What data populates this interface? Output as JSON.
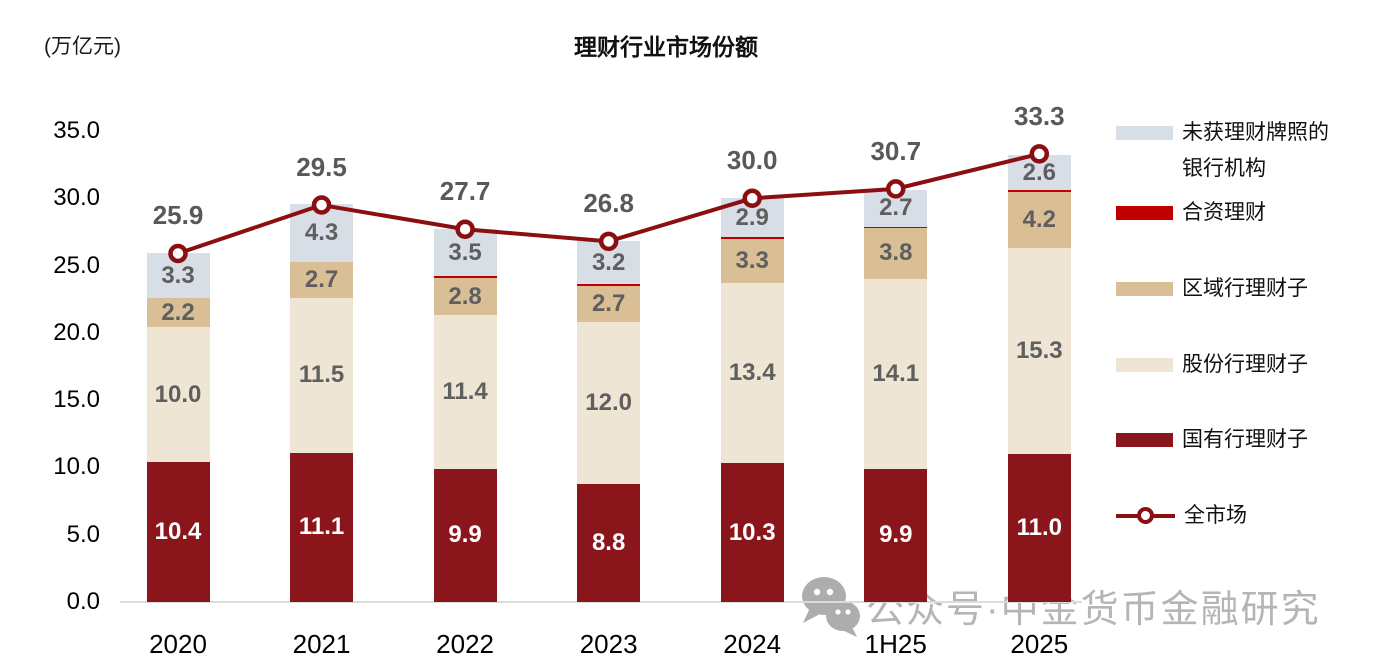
{
  "header": {
    "unit_label": "(万亿元)",
    "title": "理财行业市场份额"
  },
  "chart_data": {
    "type": "bar",
    "stacked": true,
    "title": "理财行业市场份额",
    "ylabel": "(万亿元)",
    "categories": [
      "2020",
      "2021",
      "2022",
      "2023",
      "2024",
      "1H25",
      "2025"
    ],
    "series": [
      {
        "name": "国有行理财子",
        "color": "#8a151b",
        "label_style": "white",
        "values": [
          10.4,
          11.1,
          9.9,
          8.8,
          10.3,
          9.9,
          11.0
        ]
      },
      {
        "name": "股份行理财子",
        "color": "#efe5d5",
        "values": [
          10.0,
          11.5,
          11.4,
          12.0,
          13.4,
          14.1,
          15.3
        ]
      },
      {
        "name": "区域行理财子",
        "color": "#d9be96",
        "values": [
          2.2,
          2.7,
          2.8,
          2.7,
          3.3,
          3.8,
          4.2
        ]
      },
      {
        "name": "合资理财",
        "color": "#c00000",
        "show_labels": false,
        "values": [
          0,
          0,
          0.1,
          0.1,
          0.1,
          0.1,
          0.1
        ]
      },
      {
        "name": "未获理财牌照的银行机构",
        "color": "#d8dee6",
        "values": [
          3.3,
          4.3,
          3.5,
          3.2,
          2.9,
          2.7,
          2.6
        ]
      }
    ],
    "line_series": {
      "name": "全市场",
      "color": "#8b0e10",
      "values": [
        25.9,
        29.5,
        27.7,
        26.8,
        30.0,
        30.7,
        33.3
      ]
    },
    "ylim": [
      0,
      35
    ],
    "yticks": [
      {
        "value": 0,
        "label": "0.0"
      },
      {
        "value": 5,
        "label": "5.0"
      },
      {
        "value": 10,
        "label": "10.0"
      },
      {
        "value": 15,
        "label": "15.0"
      },
      {
        "value": 20,
        "label": "20.0"
      },
      {
        "value": 25,
        "label": "25.0"
      },
      {
        "value": 30,
        "label": "30.0"
      },
      {
        "value": 35,
        "label": "35.0"
      }
    ],
    "grid": false,
    "legend_position": "right"
  },
  "legend": {
    "items": [
      {
        "label": "未获理财牌照的银行机构",
        "swatch": "#d8dee6",
        "kind": "box"
      },
      {
        "label": "合资理财",
        "swatch": "#c00000",
        "kind": "box"
      },
      {
        "label": "区域行理财子",
        "swatch": "#d9be96",
        "kind": "box"
      },
      {
        "label": "股份行理财子",
        "swatch": "#efe5d5",
        "kind": "box"
      },
      {
        "label": "国有行理财子",
        "swatch": "#8a151b",
        "kind": "box"
      },
      {
        "label": "全市场",
        "swatch": "#8b0e10",
        "kind": "line-marker"
      }
    ]
  },
  "watermark": {
    "icon": "wechat-icon",
    "text": "公众号·中金货币金融研究"
  }
}
